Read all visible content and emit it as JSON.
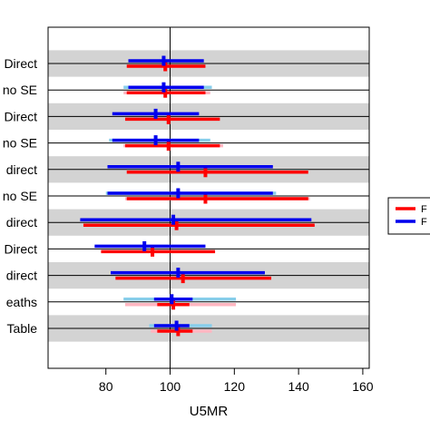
{
  "chart_data": {
    "type": "forest",
    "xlabel": "U5MR",
    "xlim": [
      62,
      162
    ],
    "xticks": [
      80,
      100,
      120,
      140,
      160
    ],
    "reference_x": 100,
    "grid": false,
    "legend_position": "right",
    "colors": {
      "series_a": "#ff0000",
      "series_b": "#0000ee",
      "series_a_light": "#ffb6c1",
      "series_b_light": "#87ceeb",
      "shade": "#d3d3d3"
    },
    "categories": [
      "Direct",
      "no SE",
      "Direct",
      "no SE",
      "direct",
      "no SE",
      "direct",
      "Direct",
      "direct",
      "eaths",
      "Table"
    ],
    "series": [
      {
        "name": "F",
        "color": "#ff0000",
        "estimate": [
          98.5,
          98.5,
          99.5,
          99.5,
          111,
          111,
          102,
          94.5,
          104,
          101,
          102.5
        ],
        "lower": [
          86.5,
          86.5,
          86,
          86,
          86.5,
          86.5,
          73,
          78.5,
          83,
          96,
          96
        ],
        "upper": [
          111,
          111,
          115.5,
          115.5,
          143,
          143,
          145,
          114,
          131.5,
          106,
          107
        ],
        "light_lower": [
          null,
          85.5,
          null,
          85.5,
          null,
          86,
          null,
          null,
          null,
          86,
          94
        ],
        "light_upper": [
          null,
          112.5,
          null,
          116.5,
          null,
          143.5,
          null,
          null,
          null,
          120.5,
          113
        ]
      },
      {
        "name": "F",
        "color": "#0000ee",
        "estimate": [
          98,
          98,
          95.5,
          95.5,
          102.5,
          102.5,
          101,
          92,
          102.5,
          100.5,
          102
        ],
        "lower": [
          87,
          87,
          82,
          82,
          80.5,
          80.5,
          72,
          76.5,
          81.5,
          95,
          95
        ],
        "upper": [
          110.5,
          110.5,
          109,
          109,
          132,
          132,
          144,
          111,
          129.5,
          107,
          106
        ],
        "light_lower": [
          null,
          85.5,
          null,
          81,
          null,
          80,
          null,
          null,
          null,
          85.5,
          93.5
        ],
        "light_upper": [
          null,
          113,
          null,
          112.5,
          null,
          133,
          null,
          null,
          null,
          120.5,
          113
        ]
      }
    ],
    "shaded_rows": [
      0,
      2,
      4,
      6,
      8,
      10
    ]
  }
}
